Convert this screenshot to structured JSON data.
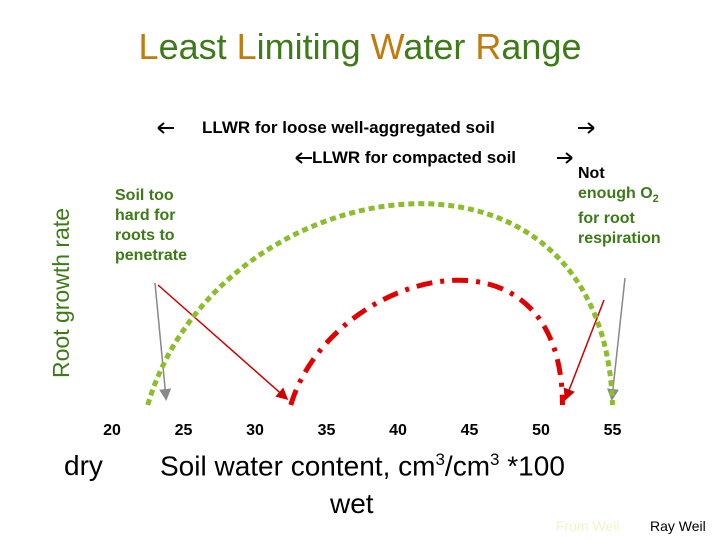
{
  "title": {
    "p1_cap": "L",
    "p1_rest": "east ",
    "p2_cap": "L",
    "p2_rest": "imiting ",
    "p3_cap": "W",
    "p3_rest": "ater ",
    "p4_cap": "R",
    "p4_rest": "ange"
  },
  "colors": {
    "green": "#8cbd2b",
    "red": "#e00000",
    "title_green": "#3d7a18",
    "title_orange": "#c07a0e",
    "pointer_gray": "#888888",
    "pointer_red": "#cc0000"
  },
  "annotations": {
    "loose": "LLWR for loose well-aggregated soil",
    "compacted": "LLWR for compacted  soil",
    "too_hard": [
      "Soil too",
      "hard for",
      "roots to",
      "penetrate"
    ],
    "not_enough_line1": "Not",
    "not_enough_line2a": "enough O",
    "not_enough_sub": "2",
    "not_enough_line3": "for root",
    "not_enough_line4": "respiration"
  },
  "chart_data": {
    "type": "line",
    "xlabel": "Soil water content, cm3/cm3 *100",
    "ylabel": "Root growth rate",
    "xlim": [
      20,
      55
    ],
    "ylim": [
      0,
      100
    ],
    "x_ticks": [
      "20",
      "25",
      "30",
      "35",
      "40",
      "45",
      "50",
      "55"
    ],
    "left_end_label": "dry",
    "right_end_label": "wet",
    "series": [
      {
        "name": "LLWR for loose well-aggregated soil",
        "style": "dotted",
        "color": "#8cbd2b",
        "x": [
          22.5,
          55
        ]
      },
      {
        "name": "LLWR for compacted  soil",
        "style": "dash-dot",
        "color": "#e00000",
        "x": [
          32.5,
          51.5
        ]
      }
    ]
  },
  "xlabel_parts": {
    "a": "Soil water content, cm",
    "sup1": "3",
    "b": "/cm",
    "sup2": "3",
    "c": " *100",
    "wet": "wet",
    "dry": "dry"
  },
  "credit": {
    "faint": "From Weil",
    "main": "Ray Weil"
  }
}
